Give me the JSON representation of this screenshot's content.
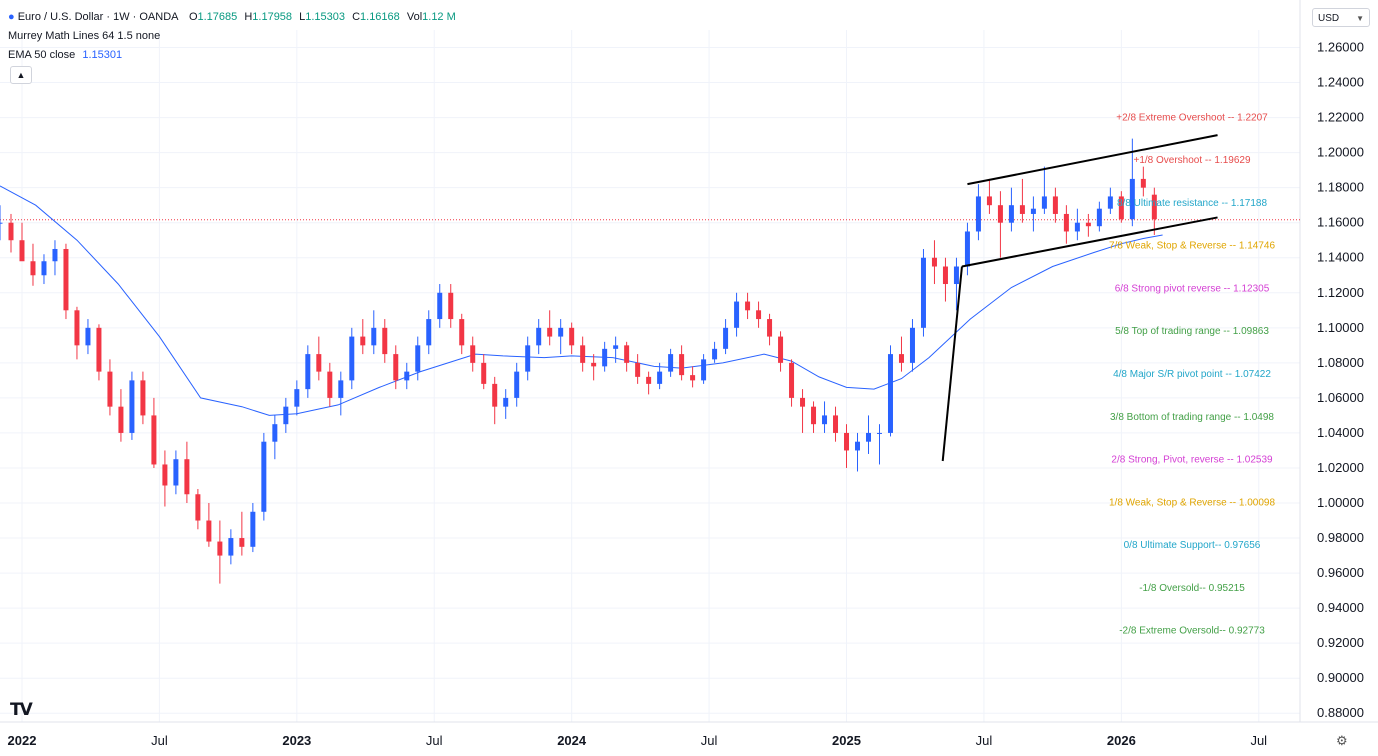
{
  "legend": {
    "symbol_title": "Euro / U.S. Dollar · 1W · OANDA",
    "ohlc": [
      {
        "k": "O",
        "v": "1.17685"
      },
      {
        "k": "H",
        "v": "1.17958"
      },
      {
        "k": "L",
        "v": "1.15303"
      },
      {
        "k": "C",
        "v": "1.16168"
      },
      {
        "k": "Vol",
        "v": "1.12 M"
      }
    ],
    "indicator_murrey": "Murrey Math Lines 64 1.5 none",
    "ema_label": "EMA 50 close",
    "ema_value": "1.15301",
    "collapse_icon": "chevron-up-icon"
  },
  "currency": "USD",
  "colors": {
    "up": "#2962ff",
    "down": "#f23645",
    "ema": "#2962ff",
    "price_line": "#f23645",
    "trend": "#000000",
    "grid": "#f0f3fa"
  },
  "chart_data": {
    "type": "candlestick",
    "instrument": "EUR/USD",
    "timeframe": "1W",
    "ylim": [
      0.875,
      1.27
    ],
    "y_ticks": [
      "1.26000",
      "1.24000",
      "1.22000",
      "1.20000",
      "1.18000",
      "1.16000",
      "1.14000",
      "1.12000",
      "1.10000",
      "1.08000",
      "1.06000",
      "1.04000",
      "1.02000",
      "1.00000",
      "0.98000",
      "0.96000",
      "0.94000",
      "0.92000",
      "0.90000",
      "0.88000"
    ],
    "x_labels": [
      {
        "label": "2022",
        "t": 2022.0
      },
      {
        "label": "Jul",
        "t": 2022.5
      },
      {
        "label": "2023",
        "t": 2023.0
      },
      {
        "label": "Jul",
        "t": 2023.5
      },
      {
        "label": "2024",
        "t": 2024.0
      },
      {
        "label": "Jul",
        "t": 2024.5
      },
      {
        "label": "2025",
        "t": 2025.0
      },
      {
        "label": "Jul",
        "t": 2025.5
      },
      {
        "label": "2026",
        "t": 2026.0
      },
      {
        "label": "Jul",
        "t": 2026.5
      }
    ],
    "t_range": [
      2021.92,
      2026.65
    ],
    "last_price": 1.16168,
    "ema50": [
      [
        2021.92,
        1.181
      ],
      [
        2022.05,
        1.17
      ],
      [
        2022.2,
        1.15
      ],
      [
        2022.35,
        1.125
      ],
      [
        2022.5,
        1.095
      ],
      [
        2022.65,
        1.06
      ],
      [
        2022.8,
        1.055
      ],
      [
        2022.9,
        1.05
      ],
      [
        2023.0,
        1.051
      ],
      [
        2023.15,
        1.056
      ],
      [
        2023.3,
        1.066
      ],
      [
        2023.45,
        1.075
      ],
      [
        2023.55,
        1.08
      ],
      [
        2023.65,
        1.085
      ],
      [
        2023.75,
        1.084
      ],
      [
        2023.9,
        1.083
      ],
      [
        2024.0,
        1.084
      ],
      [
        2024.15,
        1.083
      ],
      [
        2024.3,
        1.078
      ],
      [
        2024.4,
        1.077
      ],
      [
        2024.55,
        1.08
      ],
      [
        2024.7,
        1.085
      ],
      [
        2024.8,
        1.081
      ],
      [
        2024.9,
        1.072
      ],
      [
        2025.0,
        1.066
      ],
      [
        2025.1,
        1.065
      ],
      [
        2025.2,
        1.071
      ],
      [
        2025.3,
        1.083
      ],
      [
        2025.45,
        1.105
      ],
      [
        2025.6,
        1.123
      ],
      [
        2025.75,
        1.135
      ],
      [
        2025.9,
        1.143
      ],
      [
        2026.0,
        1.148
      ],
      [
        2026.08,
        1.151
      ],
      [
        2026.15,
        1.153
      ]
    ],
    "candles": [
      [
        2021.92,
        1.16,
        1.17,
        1.15,
        1.16
      ],
      [
        2021.96,
        1.16,
        1.165,
        1.143,
        1.15
      ],
      [
        2022.0,
        1.15,
        1.16,
        1.14,
        1.138
      ],
      [
        2022.04,
        1.138,
        1.148,
        1.124,
        1.13
      ],
      [
        2022.08,
        1.13,
        1.142,
        1.125,
        1.138
      ],
      [
        2022.12,
        1.138,
        1.15,
        1.13,
        1.145
      ],
      [
        2022.16,
        1.145,
        1.148,
        1.105,
        1.11
      ],
      [
        2022.2,
        1.11,
        1.112,
        1.082,
        1.09
      ],
      [
        2022.24,
        1.09,
        1.105,
        1.085,
        1.1
      ],
      [
        2022.28,
        1.1,
        1.102,
        1.07,
        1.075
      ],
      [
        2022.32,
        1.075,
        1.082,
        1.05,
        1.055
      ],
      [
        2022.36,
        1.055,
        1.065,
        1.035,
        1.04
      ],
      [
        2022.4,
        1.04,
        1.075,
        1.036,
        1.07
      ],
      [
        2022.44,
        1.07,
        1.075,
        1.045,
        1.05
      ],
      [
        2022.48,
        1.05,
        1.06,
        1.02,
        1.022
      ],
      [
        2022.52,
        1.022,
        1.03,
        0.998,
        1.01
      ],
      [
        2022.56,
        1.01,
        1.03,
        1.005,
        1.025
      ],
      [
        2022.6,
        1.025,
        1.035,
        1.0,
        1.005
      ],
      [
        2022.64,
        1.005,
        1.008,
        0.985,
        0.99
      ],
      [
        2022.68,
        0.99,
        1.0,
        0.975,
        0.978
      ],
      [
        2022.72,
        0.978,
        0.99,
        0.954,
        0.97
      ],
      [
        2022.76,
        0.97,
        0.985,
        0.965,
        0.98
      ],
      [
        2022.8,
        0.98,
        0.995,
        0.97,
        0.975
      ],
      [
        2022.84,
        0.975,
        1.0,
        0.972,
        0.995
      ],
      [
        2022.88,
        0.995,
        1.04,
        0.99,
        1.035
      ],
      [
        2022.92,
        1.035,
        1.05,
        1.025,
        1.045
      ],
      [
        2022.96,
        1.045,
        1.06,
        1.04,
        1.055
      ],
      [
        2023.0,
        1.055,
        1.07,
        1.05,
        1.065
      ],
      [
        2023.04,
        1.065,
        1.09,
        1.06,
        1.085
      ],
      [
        2023.08,
        1.085,
        1.095,
        1.07,
        1.075
      ],
      [
        2023.12,
        1.075,
        1.08,
        1.055,
        1.06
      ],
      [
        2023.16,
        1.06,
        1.075,
        1.05,
        1.07
      ],
      [
        2023.2,
        1.07,
        1.1,
        1.065,
        1.095
      ],
      [
        2023.24,
        1.095,
        1.105,
        1.085,
        1.09
      ],
      [
        2023.28,
        1.09,
        1.11,
        1.085,
        1.1
      ],
      [
        2023.32,
        1.1,
        1.105,
        1.08,
        1.085
      ],
      [
        2023.36,
        1.085,
        1.09,
        1.065,
        1.07
      ],
      [
        2023.4,
        1.07,
        1.08,
        1.065,
        1.075
      ],
      [
        2023.44,
        1.075,
        1.095,
        1.07,
        1.09
      ],
      [
        2023.48,
        1.09,
        1.11,
        1.085,
        1.105
      ],
      [
        2023.52,
        1.105,
        1.125,
        1.1,
        1.12
      ],
      [
        2023.56,
        1.12,
        1.125,
        1.1,
        1.105
      ],
      [
        2023.6,
        1.105,
        1.108,
        1.085,
        1.09
      ],
      [
        2023.64,
        1.09,
        1.095,
        1.075,
        1.08
      ],
      [
        2023.68,
        1.08,
        1.085,
        1.065,
        1.068
      ],
      [
        2023.72,
        1.068,
        1.072,
        1.045,
        1.055
      ],
      [
        2023.76,
        1.055,
        1.065,
        1.048,
        1.06
      ],
      [
        2023.8,
        1.06,
        1.08,
        1.055,
        1.075
      ],
      [
        2023.84,
        1.075,
        1.095,
        1.07,
        1.09
      ],
      [
        2023.88,
        1.09,
        1.105,
        1.085,
        1.1
      ],
      [
        2023.92,
        1.1,
        1.11,
        1.09,
        1.095
      ],
      [
        2023.96,
        1.095,
        1.105,
        1.085,
        1.1
      ],
      [
        2024.0,
        1.1,
        1.103,
        1.085,
        1.09
      ],
      [
        2024.04,
        1.09,
        1.095,
        1.075,
        1.08
      ],
      [
        2024.08,
        1.08,
        1.085,
        1.07,
        1.078
      ],
      [
        2024.12,
        1.078,
        1.092,
        1.075,
        1.088
      ],
      [
        2024.16,
        1.088,
        1.095,
        1.08,
        1.09
      ],
      [
        2024.2,
        1.09,
        1.092,
        1.075,
        1.08
      ],
      [
        2024.24,
        1.08,
        1.085,
        1.068,
        1.072
      ],
      [
        2024.28,
        1.072,
        1.075,
        1.062,
        1.068
      ],
      [
        2024.32,
        1.068,
        1.08,
        1.065,
        1.075
      ],
      [
        2024.36,
        1.075,
        1.088,
        1.072,
        1.085
      ],
      [
        2024.4,
        1.085,
        1.09,
        1.07,
        1.073
      ],
      [
        2024.44,
        1.073,
        1.078,
        1.066,
        1.07
      ],
      [
        2024.48,
        1.07,
        1.085,
        1.068,
        1.082
      ],
      [
        2024.52,
        1.082,
        1.092,
        1.08,
        1.088
      ],
      [
        2024.56,
        1.088,
        1.105,
        1.085,
        1.1
      ],
      [
        2024.6,
        1.1,
        1.12,
        1.095,
        1.115
      ],
      [
        2024.64,
        1.115,
        1.12,
        1.105,
        1.11
      ],
      [
        2024.68,
        1.11,
        1.115,
        1.1,
        1.105
      ],
      [
        2024.72,
        1.105,
        1.108,
        1.09,
        1.095
      ],
      [
        2024.76,
        1.095,
        1.098,
        1.075,
        1.08
      ],
      [
        2024.8,
        1.08,
        1.082,
        1.055,
        1.06
      ],
      [
        2024.84,
        1.06,
        1.065,
        1.04,
        1.055
      ],
      [
        2024.88,
        1.055,
        1.058,
        1.04,
        1.045
      ],
      [
        2024.92,
        1.045,
        1.058,
        1.04,
        1.05
      ],
      [
        2024.96,
        1.05,
        1.055,
        1.035,
        1.04
      ],
      [
        2025.0,
        1.04,
        1.045,
        1.02,
        1.03
      ],
      [
        2025.04,
        1.03,
        1.04,
        1.018,
        1.035
      ],
      [
        2025.08,
        1.035,
        1.05,
        1.028,
        1.04
      ],
      [
        2025.12,
        1.04,
        1.045,
        1.022,
        1.04
      ],
      [
        2025.16,
        1.04,
        1.09,
        1.038,
        1.085
      ],
      [
        2025.2,
        1.085,
        1.095,
        1.075,
        1.08
      ],
      [
        2025.24,
        1.08,
        1.105,
        1.075,
        1.1
      ],
      [
        2025.28,
        1.1,
        1.145,
        1.095,
        1.14
      ],
      [
        2025.32,
        1.14,
        1.15,
        1.125,
        1.135
      ],
      [
        2025.36,
        1.135,
        1.14,
        1.115,
        1.125
      ],
      [
        2025.4,
        1.125,
        1.14,
        1.11,
        1.135
      ],
      [
        2025.44,
        1.135,
        1.16,
        1.13,
        1.155
      ],
      [
        2025.48,
        1.155,
        1.182,
        1.15,
        1.175
      ],
      [
        2025.52,
        1.175,
        1.185,
        1.165,
        1.17
      ],
      [
        2025.56,
        1.17,
        1.178,
        1.14,
        1.16
      ],
      [
        2025.6,
        1.16,
        1.18,
        1.155,
        1.17
      ],
      [
        2025.64,
        1.17,
        1.185,
        1.16,
        1.165
      ],
      [
        2025.68,
        1.165,
        1.175,
        1.155,
        1.168
      ],
      [
        2025.72,
        1.168,
        1.192,
        1.165,
        1.175
      ],
      [
        2025.76,
        1.175,
        1.18,
        1.16,
        1.165
      ],
      [
        2025.8,
        1.165,
        1.17,
        1.148,
        1.155
      ],
      [
        2025.84,
        1.155,
        1.168,
        1.15,
        1.16
      ],
      [
        2025.88,
        1.16,
        1.165,
        1.152,
        1.158
      ],
      [
        2025.92,
        1.158,
        1.172,
        1.155,
        1.168
      ],
      [
        2025.96,
        1.168,
        1.18,
        1.165,
        1.175
      ],
      [
        2026.0,
        1.175,
        1.178,
        1.16,
        1.162
      ],
      [
        2026.04,
        1.162,
        1.208,
        1.158,
        1.185
      ],
      [
        2026.08,
        1.185,
        1.192,
        1.175,
        1.18
      ],
      [
        2026.12,
        1.176,
        1.18,
        1.153,
        1.162
      ]
    ],
    "murrey_levels": [
      {
        "label": "+2/8 Extreme Overshoot --  1.2207",
        "price": 1.2207,
        "color": "#e74c4c"
      },
      {
        "label": "+1/8 Overshoot --  1.19629",
        "price": 1.19629,
        "color": "#e74c4c"
      },
      {
        "label": "8/8 Ultimate resistance --  1.17188",
        "price": 1.17188,
        "color": "#22a6c9"
      },
      {
        "label": "7/8 Weak, Stop & Reverse --  1.14746",
        "price": 1.14746,
        "color": "#e0a500"
      },
      {
        "label": "6/8 Strong pivot reverse --  1.12305",
        "price": 1.12305,
        "color": "#d43fd4"
      },
      {
        "label": "5/8 Top of trading range --  1.09863",
        "price": 1.09863,
        "color": "#43a047"
      },
      {
        "label": "4/8 Major S/R pivot point --  1.07422",
        "price": 1.07422,
        "color": "#22a6c9"
      },
      {
        "label": "3/8 Bottom of trading range --  1.0498",
        "price": 1.0498,
        "color": "#43a047"
      },
      {
        "label": "2/8 Strong, Pivot, reverse --  1.02539",
        "price": 1.02539,
        "color": "#d43fd4"
      },
      {
        "label": "1/8 Weak, Stop & Reverse --  1.00098",
        "price": 1.00098,
        "color": "#e0a500"
      },
      {
        "label": "0/8 Ultimate Support--  0.97656",
        "price": 0.97656,
        "color": "#22a6c9"
      },
      {
        "label": "-1/8 Oversold--  0.95215",
        "price": 0.95215,
        "color": "#43a047"
      },
      {
        "label": "-2/8 Extreme Oversold--  0.92773",
        "price": 0.92773,
        "color": "#43a047"
      }
    ],
    "trendlines": [
      [
        [
          2025.44,
          1.182
        ],
        [
          2026.35,
          1.21
        ]
      ],
      [
        [
          2025.42,
          1.135
        ],
        [
          2026.35,
          1.163
        ]
      ],
      [
        [
          2025.35,
          1.024
        ],
        [
          2025.42,
          1.135
        ]
      ]
    ]
  }
}
